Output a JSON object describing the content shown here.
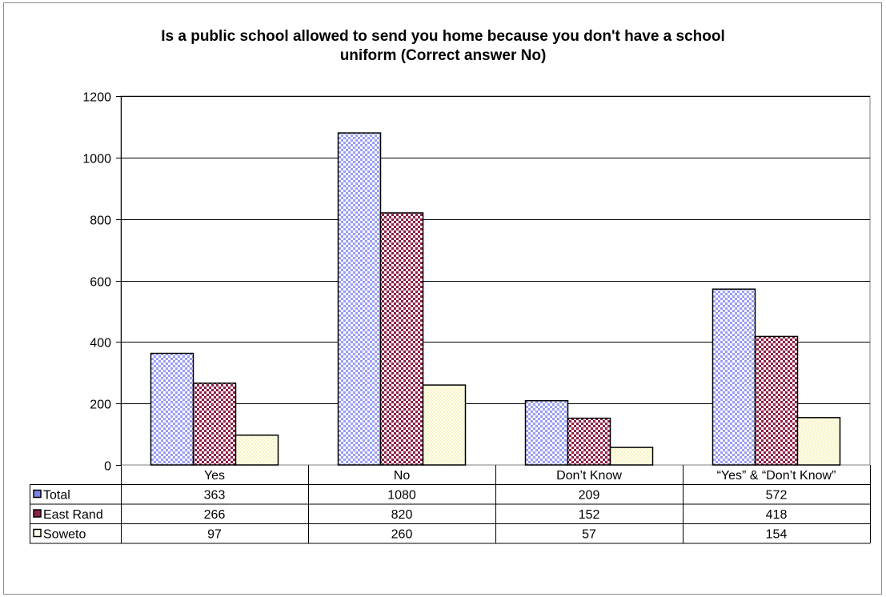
{
  "chart_data": {
    "type": "bar",
    "title_lines": [
      "Is a public school allowed to send you home because you don't have a school",
      "uniform (Correct answer No)"
    ],
    "categories": [
      "Yes",
      "No",
      "Don’t Know",
      "“Yes” & “Don’t Know”"
    ],
    "series": [
      {
        "name": "Total",
        "values": [
          363,
          1080,
          209,
          572
        ],
        "color": "#a9acf5",
        "pattern": "checker-blue"
      },
      {
        "name": "East Rand",
        "values": [
          266,
          820,
          152,
          418
        ],
        "color": "#9b2c4e",
        "pattern": "checker-maroon"
      },
      {
        "name": "Soweto",
        "values": [
          97,
          260,
          57,
          154
        ],
        "color": "#ffffd8",
        "pattern": "dotted-cream"
      }
    ],
    "ylim": [
      0,
      1200
    ],
    "yticks": [
      0,
      200,
      400,
      600,
      800,
      1000,
      1200
    ],
    "ytick_labels": [
      "0",
      "200",
      "400",
      "600",
      "800",
      "1000",
      "1200"
    ],
    "grid": true,
    "legend": "data-table-below"
  }
}
